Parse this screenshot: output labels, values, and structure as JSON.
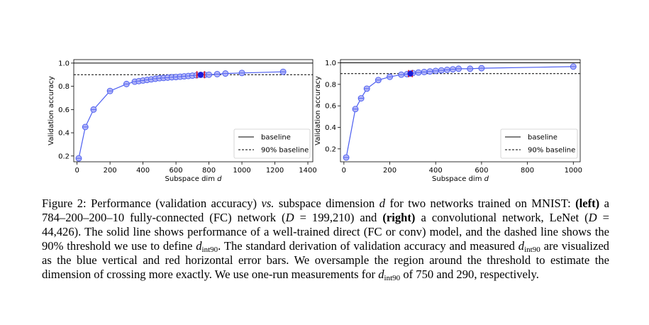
{
  "chart_data": [
    {
      "type": "line",
      "xlabel": "Subspace dim d",
      "ylabel": "Validation accuracy",
      "xlim": [
        -20,
        1430
      ],
      "ylim": [
        0.15,
        1.03
      ],
      "xticks": [
        0,
        200,
        400,
        600,
        800,
        1000,
        1200,
        1400
      ],
      "yticks": [
        0.2,
        0.4,
        0.6,
        0.8,
        1.0
      ],
      "xtick_labels": [
        "0",
        "200",
        "400",
        "600",
        "800",
        "1000",
        "1200",
        "1400"
      ],
      "ytick_labels": [
        "0.2",
        "0.4",
        "0.6",
        "0.8",
        "1.0"
      ],
      "baseline": 1.0,
      "threshold_90": 0.9,
      "legend": [
        "baseline",
        "90% baseline"
      ],
      "legend_position": "lower-right",
      "series": [
        {
          "x": [
            10,
            50,
            100,
            200,
            300,
            350,
            375,
            400,
            425,
            450,
            475,
            500,
            525,
            550,
            575,
            600,
            625,
            650,
            675,
            700,
            725,
            750,
            775,
            800,
            850,
            900,
            1000,
            1250
          ],
          "y": [
            0.18,
            0.45,
            0.6,
            0.76,
            0.82,
            0.84,
            0.845,
            0.85,
            0.855,
            0.86,
            0.865,
            0.87,
            0.872,
            0.875,
            0.878,
            0.88,
            0.883,
            0.886,
            0.889,
            0.892,
            0.895,
            0.898,
            0.899,
            0.9,
            0.905,
            0.91,
            0.915,
            0.925
          ]
        }
      ],
      "dint90": 750,
      "dint90_y": 0.9,
      "error_bars_x": [
        727,
        773
      ]
    },
    {
      "type": "line",
      "xlabel": "Subspace dim d",
      "ylabel": "Validation accuracy",
      "xlim": [
        -15,
        1030
      ],
      "ylim": [
        0.08,
        1.03
      ],
      "xticks": [
        0,
        200,
        400,
        600,
        800,
        1000
      ],
      "yticks": [
        0.2,
        0.4,
        0.6,
        0.8,
        1.0
      ],
      "xtick_labels": [
        "0",
        "200",
        "400",
        "600",
        "800",
        "1000"
      ],
      "ytick_labels": [
        "0.2",
        "0.4",
        "0.6",
        "0.8",
        "1.0"
      ],
      "baseline": 1.0,
      "threshold_90": 0.9,
      "legend": [
        "baseline",
        "90% baseline"
      ],
      "legend_position": "lower-right",
      "series": [
        {
          "x": [
            10,
            50,
            75,
            100,
            150,
            200,
            250,
            275,
            290,
            300,
            325,
            350,
            375,
            400,
            425,
            450,
            475,
            500,
            550,
            600,
            1000
          ],
          "y": [
            0.12,
            0.57,
            0.67,
            0.76,
            0.84,
            0.87,
            0.89,
            0.895,
            0.9,
            0.905,
            0.91,
            0.915,
            0.92,
            0.925,
            0.93,
            0.935,
            0.94,
            0.945,
            0.945,
            0.95,
            0.965
          ]
        }
      ],
      "dint90": 290,
      "dint90_y": 0.9,
      "error_bars_x": [
        282,
        298
      ]
    }
  ],
  "caption": {
    "fig_label": "Figure 2:",
    "s1": "Performance (validation accuracy)",
    "vs": "vs.",
    "s2": "subspace dimension",
    "d1": "d",
    "s3": "for two networks trained on MNIST:",
    "left": "(left)",
    "s4": "a 784–200–200–10 fully-connected (FC) network (",
    "D1": "D",
    "s5": "= 199,210) and",
    "right": "(right)",
    "s6": "a convolutional network, LeNet (",
    "D2": "D",
    "s7": "= 44,426). The solid line shows performance of a well-trained direct (FC or conv) model, and the dashed line shows the 90% threshold we use to define",
    "dint_main": "d",
    "dint_sub": "int90",
    "s8": ". The standard derivation of validation accuracy and measured",
    "s9": "are visualized as the blue vertical and red horizontal error bars. We oversample the region around the threshold to estimate the dimension of crossing more exactly. We use one-run measurements for",
    "s10": "of 750 and 290, respectively."
  }
}
